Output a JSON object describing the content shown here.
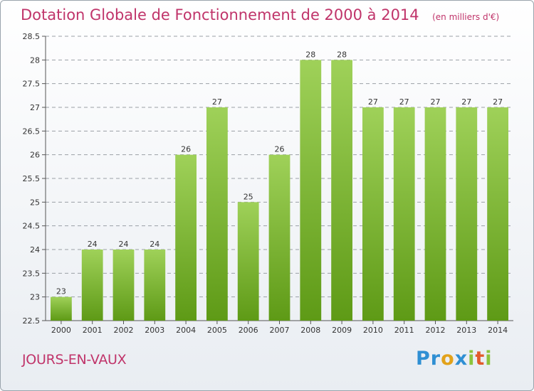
{
  "header": {
    "title": "Dotation Globale de Fonctionnement de 2000 à 2014",
    "unit": "(en milliers d'€)"
  },
  "footer": {
    "commune": "JOURS-EN-VAUX",
    "logo_letters": [
      {
        "char": "P",
        "color": "#2f8fd3"
      },
      {
        "char": "r",
        "color": "#2f8fd3"
      },
      {
        "char": "o",
        "color": "#e2a21b"
      },
      {
        "char": "x",
        "color": "#2f8fd3"
      },
      {
        "char": "i",
        "color": "#8cc43c"
      },
      {
        "char": "t",
        "color": "#e25b2b"
      },
      {
        "char": "i",
        "color": "#8cc43c"
      }
    ]
  },
  "colors": {
    "accent": "#c0346a",
    "bar_light": "#9fd159",
    "bar_dark": "#5e9a16",
    "grid": "#9aa0a6"
  },
  "chart_data": {
    "type": "bar",
    "title": "Dotation Globale de Fonctionnement de 2000 à 2014",
    "subtitle": "(en milliers d'€)",
    "xlabel": "",
    "ylabel": "",
    "categories": [
      "2000",
      "2001",
      "2002",
      "2003",
      "2004",
      "2005",
      "2006",
      "2007",
      "2008",
      "2009",
      "2010",
      "2011",
      "2012",
      "2013",
      "2014"
    ],
    "values": [
      23,
      24,
      24,
      24,
      26,
      27,
      25,
      26,
      28,
      28,
      27,
      27,
      27,
      27,
      27
    ],
    "ylim": [
      22.5,
      28.5
    ],
    "yticks": [
      "22.5",
      "23",
      "23.5",
      "24",
      "24.5",
      "25",
      "25.5",
      "26",
      "26.5",
      "27",
      "27.5",
      "28",
      "28.5"
    ],
    "grid": true,
    "legend": "none"
  }
}
